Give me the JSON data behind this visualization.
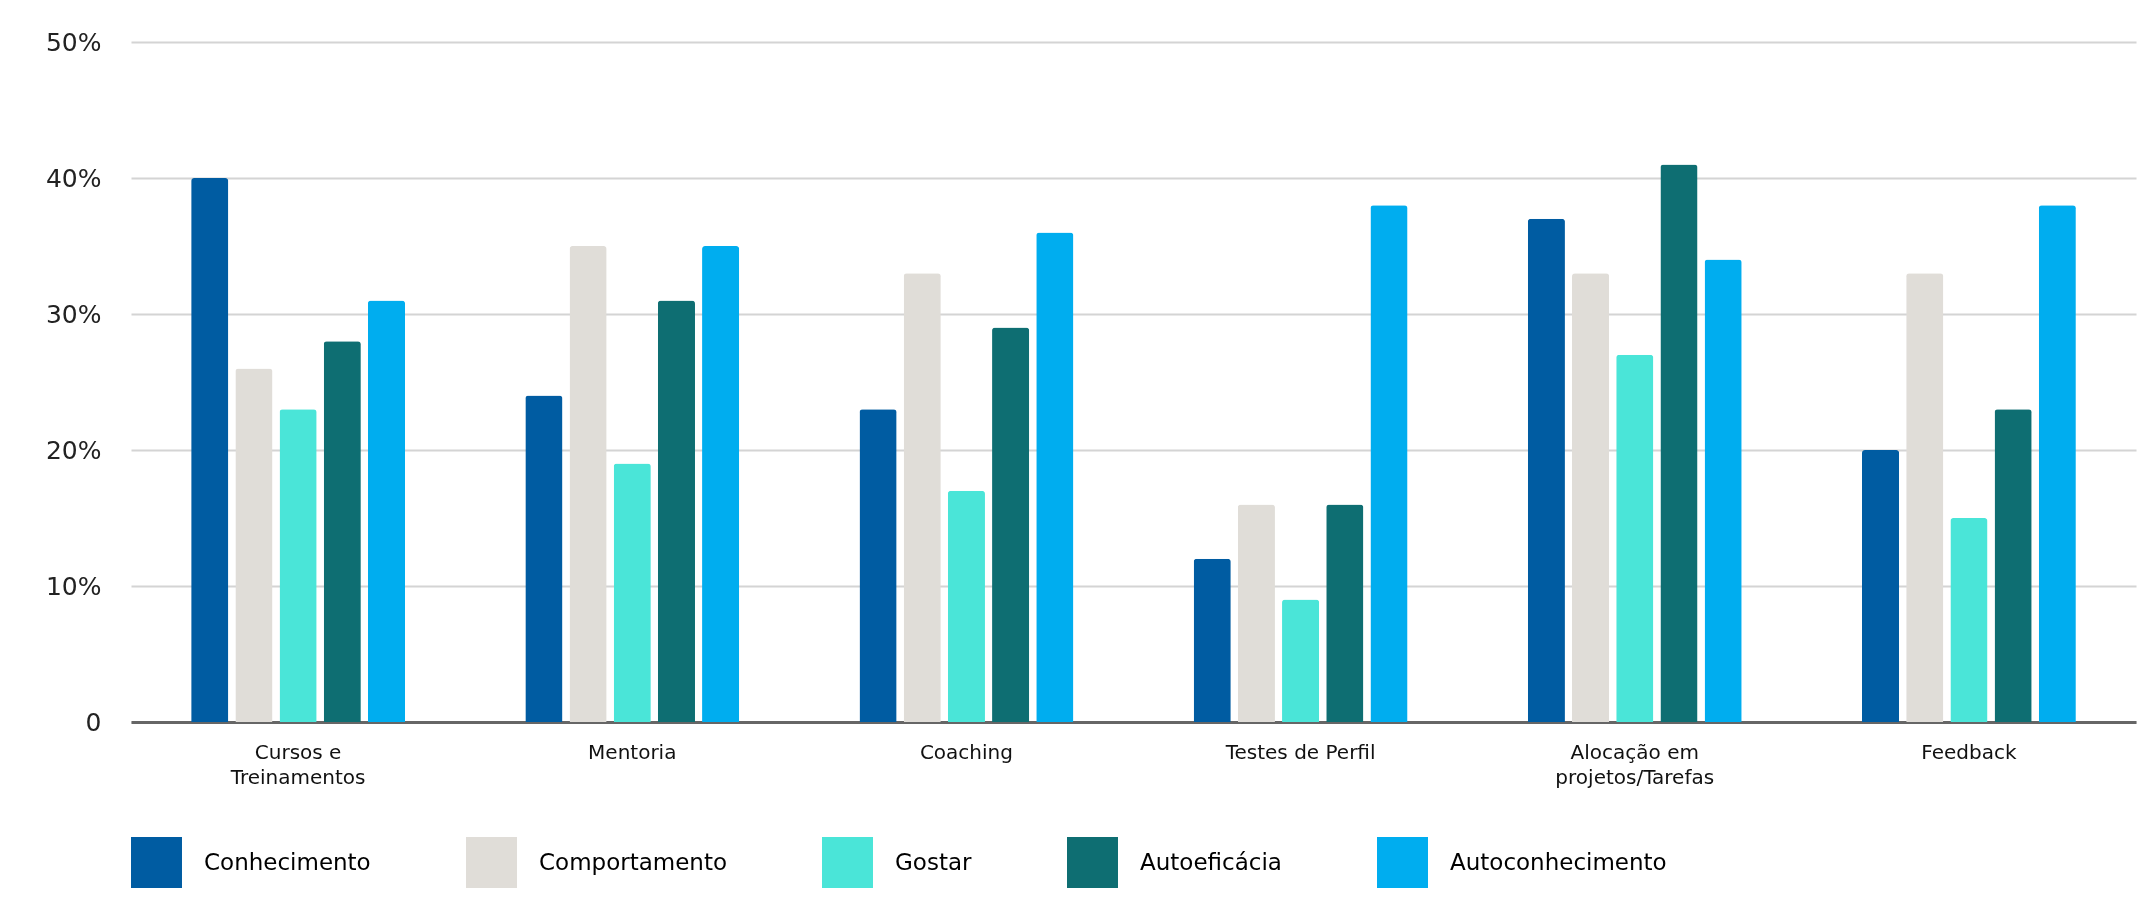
{
  "chart_data": {
    "type": "bar",
    "categories": [
      "Cursos e Treinamentos",
      "Mentoria",
      "Coaching",
      "Testes de Perfil",
      "Alocação em projetos/Tarefas",
      "Feedback"
    ],
    "series": [
      {
        "name": "Conhecimento",
        "color": "#005ca2",
        "values": [
          40,
          24,
          23,
          12,
          37,
          20
        ]
      },
      {
        "name": "Comportamento",
        "color": "#e0ddd8",
        "values": [
          26,
          35,
          33,
          16,
          33,
          33
        ]
      },
      {
        "name": "Gostar",
        "color": "#4ae5d8",
        "values": [
          23,
          19,
          17,
          9,
          27,
          15
        ]
      },
      {
        "name": "Autoeficácia",
        "color": "#0e6e72",
        "values": [
          28,
          31,
          29,
          16,
          41,
          23
        ]
      },
      {
        "name": "Autoconhecimento",
        "color": "#00adef",
        "values": [
          31,
          35,
          36,
          38,
          34,
          38
        ]
      }
    ],
    "ylim": [
      0,
      50
    ],
    "yticks": [
      0,
      {
        "value": 10,
        "label": "10%"
      },
      {
        "value": 20,
        "label": "20%"
      },
      {
        "value": 30,
        "label": "30%"
      },
      {
        "value": 40,
        "label": "40%"
      },
      {
        "value": 50,
        "label": "50%"
      }
    ],
    "grid": "y",
    "legend": "bottom"
  }
}
